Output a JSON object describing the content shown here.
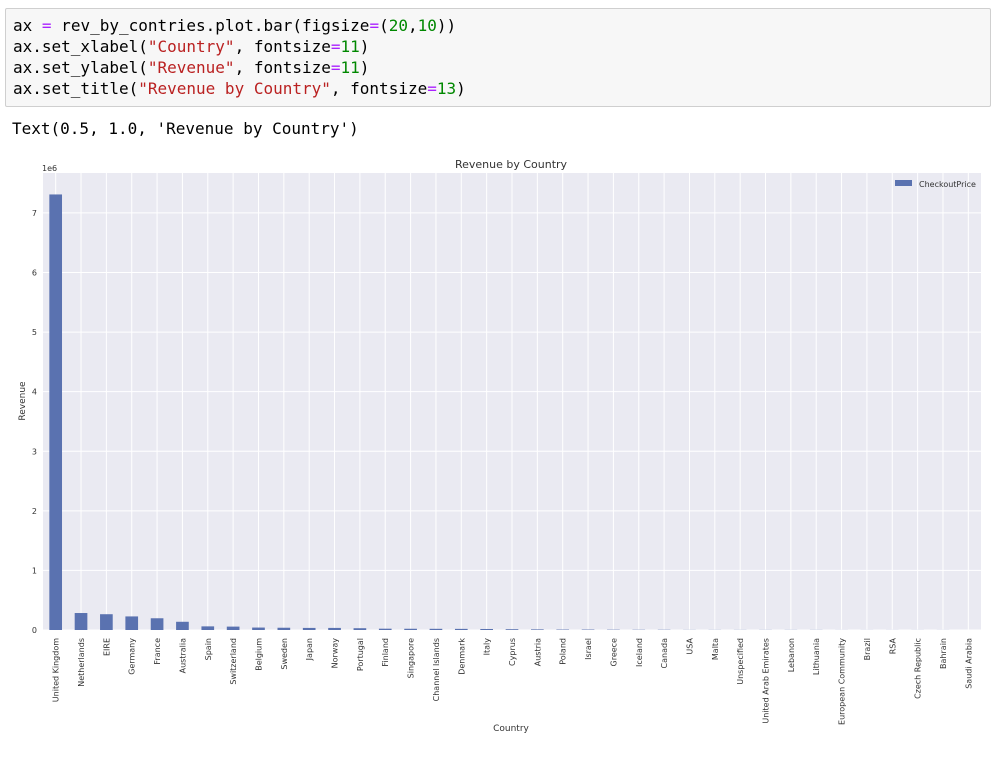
{
  "code_cell": {
    "line1": {
      "a": "ax ",
      "op": "=",
      "b": " rev_by_contries.plot.bar(figsize",
      "op2": "=",
      "c": "(",
      "n1": "20",
      "d": ",",
      "n2": "10",
      "e": "))"
    },
    "line2": {
      "a": "ax.set_xlabel(",
      "s": "\"Country\"",
      "b": ", fontsize",
      "op": "=",
      "n": "11",
      "c": ")"
    },
    "line3": {
      "a": "ax.set_ylabel(",
      "s": "\"Revenue\"",
      "b": ", fontsize",
      "op": "=",
      "n": "11",
      "c": ")"
    },
    "line4": {
      "a": "ax.set_title(",
      "s": "\"Revenue by Country\"",
      "b": ", fontsize",
      "op": "=",
      "n": "13",
      "c": ")"
    }
  },
  "output_text": "Text(0.5, 1.0, 'Revenue by Country')",
  "chart_data": {
    "type": "bar",
    "title": "Revenue by Country",
    "xlabel": "Country",
    "ylabel": "Revenue",
    "offset_text": "1e6",
    "legend_position": "top-right",
    "grid": true,
    "ylim": [
      0,
      7.67
    ],
    "yticks": [
      0,
      1,
      2,
      3,
      4,
      5,
      6,
      7
    ],
    "colors": {
      "bar": "#5a72b0",
      "plot_bg": "#eaeaf2",
      "grid": "#ffffff"
    },
    "categories": [
      "United Kingdom",
      "Netherlands",
      "EIRE",
      "Germany",
      "France",
      "Australia",
      "Spain",
      "Switzerland",
      "Belgium",
      "Sweden",
      "Japan",
      "Norway",
      "Portugal",
      "Finland",
      "Singapore",
      "Channel Islands",
      "Denmark",
      "Italy",
      "Cyprus",
      "Austria",
      "Poland",
      "Israel",
      "Greece",
      "Iceland",
      "Canada",
      "USA",
      "Malta",
      "Unspecified",
      "United Arab Emirates",
      "Lebanon",
      "Lithuania",
      "European Community",
      "Brazil",
      "RSA",
      "Czech Republic",
      "Bahrain",
      "Saudi Arabia"
    ],
    "series": [
      {
        "name": "CheckoutPrice",
        "values": [
          7.31,
          0.285,
          0.265,
          0.228,
          0.197,
          0.138,
          0.061,
          0.057,
          0.041,
          0.038,
          0.035,
          0.035,
          0.03,
          0.022,
          0.021,
          0.02,
          0.019,
          0.017,
          0.013,
          0.01,
          0.007,
          0.007,
          0.005,
          0.004,
          0.004,
          0.002,
          0.002,
          0.002,
          0.002,
          0.002,
          0.002,
          0.001,
          0.001,
          0.001,
          0.001,
          0.001,
          0.0001
        ]
      }
    ]
  }
}
